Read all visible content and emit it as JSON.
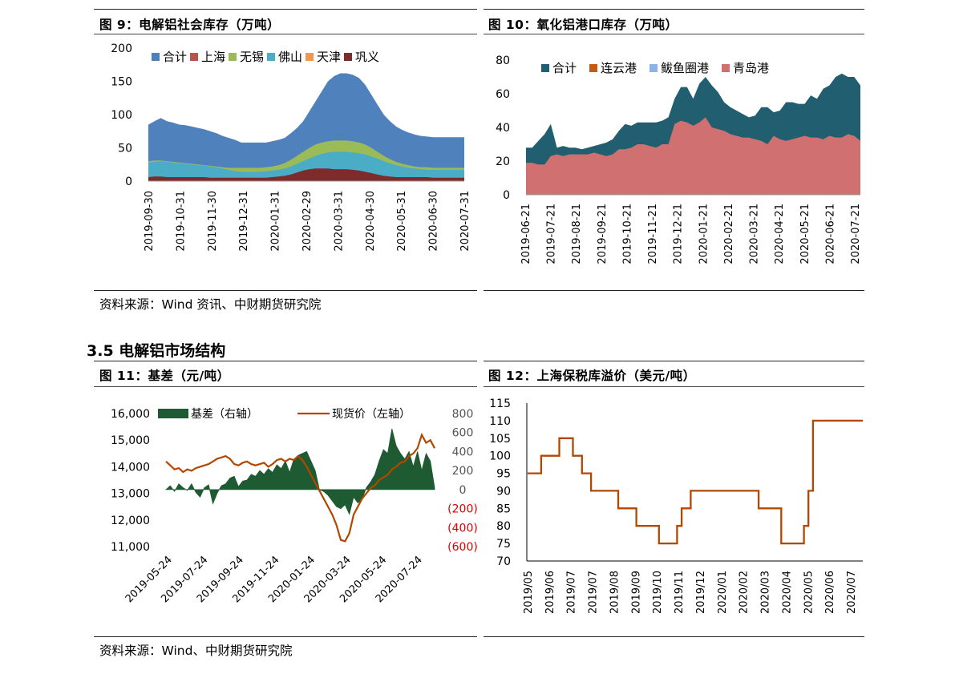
{
  "charts": {
    "fig9": {
      "title": "图 9：电解铝社会库存（万吨）",
      "chart_data": {
        "type": "area",
        "ylim": [
          0,
          200
        ],
        "yticks": [
          0,
          50,
          100,
          150,
          200
        ],
        "xticks": [
          "2019-09-30",
          "2019-10-31",
          "2019-11-30",
          "2019-12-31",
          "2020-01-31",
          "2020-02-29",
          "2020-03-31",
          "2020-04-30",
          "2020-05-31",
          "2020-06-30",
          "2020-07-31"
        ],
        "legend": "top",
        "series": [
          {
            "name": "合计",
            "color": "#4f81bd",
            "values": [
              85,
              90,
              95,
              90,
              88,
              85,
              84,
              82,
              80,
              78,
              75,
              72,
              68,
              65,
              62,
              58,
              58,
              58,
              58,
              58,
              60,
              62,
              65,
              72,
              80,
              90,
              105,
              120,
              135,
              150,
              158,
              162,
              162,
              160,
              155,
              145,
              130,
              115,
              100,
              90,
              82,
              77,
              73,
              70,
              68,
              67,
              66,
              66,
              66,
              66,
              66,
              66
            ]
          },
          {
            "name": "上海",
            "color": "#c0504d",
            "values": []
          },
          {
            "name": "无锡",
            "color": "#9bbb59",
            "values": [
              30,
              31,
              31,
              30,
              29,
              28,
              27,
              26,
              25,
              24,
              23,
              22,
              21,
              20,
              20,
              20,
              20,
              20,
              20,
              21,
              22,
              24,
              27,
              32,
              38,
              44,
              50,
              55,
              58,
              60,
              61,
              61,
              61,
              60,
              58,
              55,
              50,
              44,
              38,
              33,
              29,
              26,
              24,
              22,
              21,
              21,
              20,
              20,
              20,
              20,
              20,
              20
            ]
          },
          {
            "name": "佛山",
            "color": "#4bacc6",
            "values": [
              28,
              29,
              30,
              29,
              28,
              27,
              26,
              25,
              24,
              23,
              22,
              21,
              19,
              17,
              15,
              14,
              14,
              14,
              14,
              15,
              16,
              17,
              19,
              22,
              26,
              30,
              34,
              38,
              41,
              43,
              44,
              44,
              44,
              43,
              42,
              40,
              37,
              34,
              30,
              27,
              24,
              22,
              20,
              19,
              18,
              17,
              17,
              17,
              17,
              17,
              17,
              17
            ]
          },
          {
            "name": "天津",
            "color": "#f79646",
            "values": []
          },
          {
            "name": "巩义",
            "color": "#7f2b2b",
            "values": [
              6,
              7,
              7,
              6,
              6,
              6,
              6,
              6,
              6,
              6,
              5,
              5,
              5,
              5,
              5,
              5,
              5,
              5,
              5,
              5,
              6,
              7,
              8,
              10,
              13,
              16,
              18,
              19,
              19,
              19,
              18,
              18,
              18,
              17,
              16,
              14,
              12,
              10,
              8,
              7,
              6,
              6,
              6,
              6,
              6,
              6,
              5,
              5,
              5,
              5,
              5,
              5
            ]
          }
        ]
      }
    },
    "fig10": {
      "title": "图 10：氧化铝港口库存（万吨）",
      "chart_data": {
        "type": "area",
        "ylim": [
          0,
          80
        ],
        "yticks": [
          0,
          20,
          40,
          60,
          80
        ],
        "xticks": [
          "2019-06-21",
          "2019-07-21",
          "2019-08-21",
          "2019-09-21",
          "2019-10-21",
          "2019-11-21",
          "2019-12-21",
          "2020-01-21",
          "2020-02-21",
          "2020-03-21",
          "2020-04-21",
          "2020-05-21",
          "2020-06-21",
          "2020-07-21"
        ],
        "legend": "top",
        "series": [
          {
            "name": "合计",
            "color": "#215f70",
            "values": [
              28,
              28,
              32,
              36,
              42,
              28,
              29,
              28,
              28,
              27,
              28,
              29,
              30,
              31,
              33,
              38,
              42,
              41,
              43,
              43,
              43,
              43,
              44,
              46,
              57,
              64,
              64,
              57,
              66,
              70,
              65,
              61,
              55,
              52,
              50,
              48,
              46,
              47,
              52,
              52,
              49,
              50,
              55,
              55,
              54,
              54,
              59,
              57,
              63,
              65,
              70,
              72,
              70,
              70,
              65
            ]
          },
          {
            "name": "连云港",
            "color": "#c55a11",
            "values": []
          },
          {
            "name": "鲅鱼圈港",
            "color": "#8db3e2",
            "values": []
          },
          {
            "name": "青岛港",
            "color": "#d07070",
            "values": [
              19,
              19,
              18,
              18,
              23,
              24,
              23,
              24,
              24,
              24,
              24,
              25,
              24,
              23,
              24,
              27,
              27,
              28,
              30,
              30,
              29,
              28,
              30,
              30,
              42,
              44,
              43,
              41,
              43,
              46,
              40,
              39,
              38,
              36,
              35,
              34,
              34,
              33,
              32,
              30,
              35,
              33,
              32,
              33,
              34,
              35,
              34,
              34,
              33,
              35,
              34,
              34,
              36,
              35,
              32
            ]
          }
        ]
      }
    },
    "fig11": {
      "title": "图 11：基差（元/吨）",
      "chart_data": {
        "type": "line",
        "yleft": {
          "ylim": [
            11000,
            16000
          ],
          "ticks": [
            "11,000",
            "12,000",
            "13,000",
            "14,000",
            "15,000",
            "16,000"
          ]
        },
        "yright": {
          "ylim": [
            -600,
            800
          ],
          "ticks": [
            "(600)",
            "(400)",
            "(200)",
            "0",
            "200",
            "400",
            "600",
            "800"
          ]
        },
        "xticks": [
          "2019-05-24",
          "2019-07-24",
          "2019-09-24",
          "2019-11-24",
          "2020-01-24",
          "2020-03-24",
          "2020-05-24",
          "2020-07-24"
        ],
        "legend": "top",
        "series": [
          {
            "name": "基差（右轴）",
            "axis": "right",
            "type": "area",
            "color": "#1e5a32",
            "values": [
              0,
              40,
              -20,
              60,
              20,
              -10,
              60,
              -30,
              -80,
              20,
              50,
              -150,
              -40,
              40,
              60,
              120,
              140,
              30,
              90,
              100,
              160,
              140,
              200,
              160,
              220,
              180,
              260,
              220,
              300,
              180,
              320,
              360,
              380,
              400,
              300,
              200,
              0,
              -20,
              -60,
              -120,
              -180,
              -200,
              -160,
              -260,
              -80,
              -140,
              -100,
              20,
              80,
              160,
              300,
              420,
              380,
              640,
              460,
              380,
              320,
              400,
              240,
              400,
              200,
              380,
              300,
              20
            ]
          },
          {
            "name": "现货价（左轴）",
            "axis": "left",
            "type": "line",
            "color": "#b34700",
            "values": [
              14200,
              14050,
              13900,
              13950,
              13800,
              13900,
              13850,
              13950,
              14000,
              14050,
              14100,
              14200,
              14300,
              14350,
              14400,
              14300,
              14100,
              14050,
              14150,
              14200,
              14100,
              14050,
              14100,
              14150,
              14000,
              14100,
              14250,
              14300,
              14200,
              14300,
              14250,
              14400,
              14250,
              14000,
              13700,
              13400,
              13100,
              12800,
              12500,
              12200,
              11800,
              11250,
              11200,
              11500,
              12200,
              12500,
              12800,
              13000,
              13200,
              13300,
              13500,
              13600,
              13700,
              13900,
              14000,
              14150,
              14200,
              14400,
              14500,
              14700,
              15200,
              14900,
              15000,
              14700
            ]
          }
        ]
      }
    },
    "fig12": {
      "title": "图 12：上海保税库溢价（美元/吨）",
      "chart_data": {
        "type": "line",
        "ylim": [
          70,
          115
        ],
        "yticks": [
          70,
          75,
          80,
          85,
          90,
          95,
          100,
          105,
          110,
          115
        ],
        "xticks": [
          "2019/05",
          "2019/06",
          "2019/07",
          "2019/07",
          "2019/08",
          "2019/09",
          "2019/10",
          "2019/11",
          "2019/12",
          "2020/01",
          "2020/02",
          "2020/03",
          "2020/04",
          "2020/05",
          "2020/06",
          "2020/07"
        ],
        "series": [
          {
            "name": "",
            "color": "#b34700",
            "values": [
              95,
              95,
              95,
              100,
              100,
              100,
              100,
              105,
              105,
              105,
              100,
              100,
              95,
              95,
              90,
              90,
              90,
              90,
              90,
              90,
              85,
              85,
              85,
              85,
              80,
              80,
              80,
              80,
              80,
              75,
              75,
              75,
              75,
              80,
              85,
              85,
              90,
              90,
              90,
              90,
              90,
              90,
              90,
              90,
              90,
              90,
              90,
              90,
              90,
              90,
              90,
              85,
              85,
              85,
              85,
              85,
              75,
              75,
              75,
              75,
              75,
              80,
              90,
              110,
              110,
              110,
              110,
              110,
              110,
              110,
              110,
              110,
              110,
              110,
              110
            ]
          }
        ]
      }
    }
  },
  "section_heading": "3.5 电解铝市场结构",
  "source_top": "资料来源：Wind 资讯、中财期货研究院",
  "source_bottom": "资料来源：Wind、中财期货研究院"
}
